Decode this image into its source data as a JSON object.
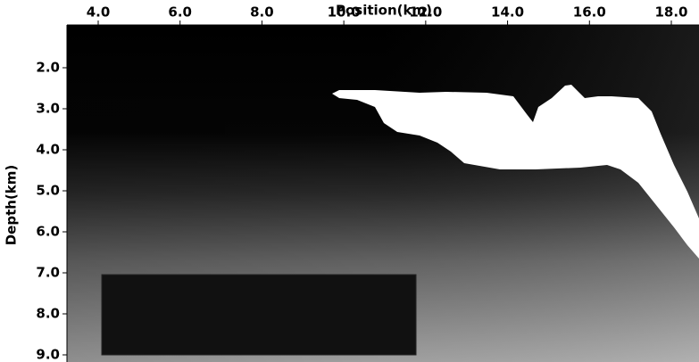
{
  "chart_data": {
    "type": "image",
    "x_label": "Position(km)",
    "y_label": "Depth(km)",
    "xlim": [
      3.237,
      18.676
    ],
    "ylim": [
      0.957,
      9.174
    ],
    "xticks": [
      {
        "value": 4,
        "label": "4.0"
      },
      {
        "value": 6,
        "label": "6.0"
      },
      {
        "value": 8,
        "label": "8.0"
      },
      {
        "value": 10,
        "label": "10.0"
      },
      {
        "value": 12,
        "label": "12.0"
      },
      {
        "value": 14,
        "label": "14.0"
      },
      {
        "value": 16,
        "label": "16.0"
      },
      {
        "value": 18,
        "label": "18.0"
      }
    ],
    "yticks": [
      {
        "value": 2,
        "label": "2.0"
      },
      {
        "value": 3,
        "label": "3.0"
      },
      {
        "value": 4,
        "label": "4.0"
      },
      {
        "value": 5,
        "label": "5.0"
      },
      {
        "value": 6,
        "label": "6.0"
      },
      {
        "value": 7,
        "label": "7.0"
      },
      {
        "value": 8,
        "label": "8.0"
      },
      {
        "value": 9,
        "label": "9.0"
      }
    ]
  }
}
